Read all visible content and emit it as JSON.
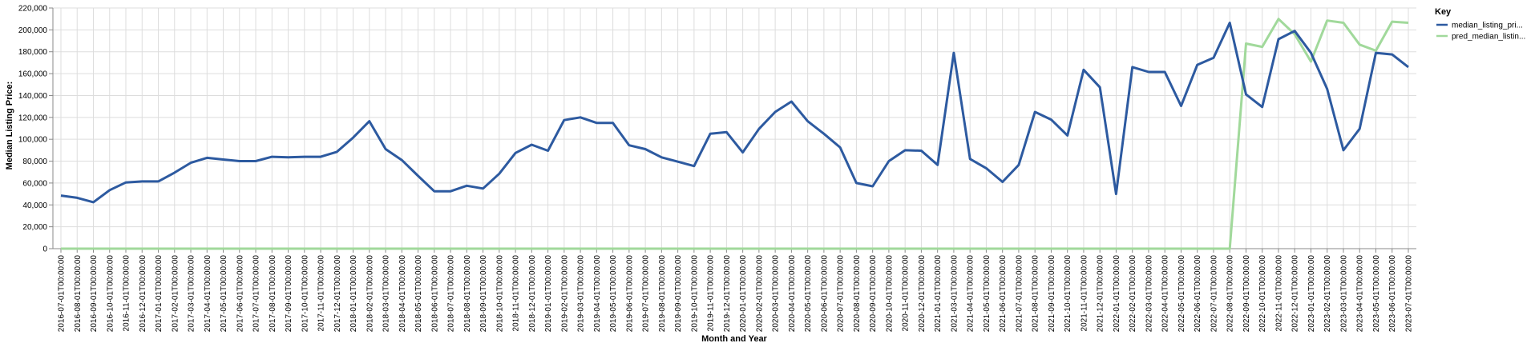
{
  "chart_data": {
    "type": "line",
    "title": "",
    "xlabel": "Month and Year",
    "ylabel": "Median Listing Price:",
    "ylim": [
      0,
      220000
    ],
    "yticks": [
      "0",
      "20,000",
      "40,000",
      "60,000",
      "80,000",
      "100,000",
      "120,000",
      "140,000",
      "160,000",
      "180,000",
      "200,000",
      "220,000"
    ],
    "grid": true,
    "legend": {
      "title": "Key",
      "position": "right"
    },
    "x": [
      "2016-07-01T00:00:00",
      "2016-08-01T00:00:00",
      "2016-09-01T00:00:00",
      "2016-10-01T00:00:00",
      "2016-11-01T00:00:00",
      "2016-12-01T00:00:00",
      "2017-01-01T00:00:00",
      "2017-02-01T00:00:00",
      "2017-03-01T00:00:00",
      "2017-04-01T00:00:00",
      "2017-05-01T00:00:00",
      "2017-06-01T00:00:00",
      "2017-07-01T00:00:00",
      "2017-08-01T00:00:00",
      "2017-09-01T00:00:00",
      "2017-10-01T00:00:00",
      "2017-11-01T00:00:00",
      "2017-12-01T00:00:00",
      "2018-01-01T00:00:00",
      "2018-02-01T00:00:00",
      "2018-03-01T00:00:00",
      "2018-04-01T00:00:00",
      "2018-05-01T00:00:00",
      "2018-06-01T00:00:00",
      "2018-07-01T00:00:00",
      "2018-08-01T00:00:00",
      "2018-09-01T00:00:00",
      "2018-10-01T00:00:00",
      "2018-11-01T00:00:00",
      "2018-12-01T00:00:00",
      "2019-01-01T00:00:00",
      "2019-02-01T00:00:00",
      "2019-03-01T00:00:00",
      "2019-04-01T00:00:00",
      "2019-05-01T00:00:00",
      "2019-06-01T00:00:00",
      "2019-07-01T00:00:00",
      "2019-08-01T00:00:00",
      "2019-09-01T00:00:00",
      "2019-10-01T00:00:00",
      "2019-11-01T00:00:00",
      "2019-12-01T00:00:00",
      "2020-01-01T00:00:00",
      "2020-02-01T00:00:00",
      "2020-03-01T00:00:00",
      "2020-04-01T00:00:00",
      "2020-05-01T00:00:00",
      "2020-06-01T00:00:00",
      "2020-07-01T00:00:00",
      "2020-08-01T00:00:00",
      "2020-09-01T00:00:00",
      "2020-10-01T00:00:00",
      "2020-11-01T00:00:00",
      "2020-12-01T00:00:00",
      "2021-01-01T00:00:00",
      "2021-03-01T00:00:00",
      "2021-04-01T00:00:00",
      "2021-05-01T00:00:00",
      "2021-06-01T00:00:00",
      "2021-07-01T00:00:00",
      "2021-08-01T00:00:00",
      "2021-09-01T00:00:00",
      "2021-10-01T00:00:00",
      "2021-11-01T00:00:00",
      "2021-12-01T00:00:00",
      "2022-01-01T00:00:00",
      "2022-02-01T00:00:00",
      "2022-03-01T00:00:00",
      "2022-04-01T00:00:00",
      "2022-05-01T00:00:00",
      "2022-06-01T00:00:00",
      "2022-07-01T00:00:00",
      "2022-08-01T00:00:00",
      "2022-09-01T00:00:00",
      "2022-10-01T00:00:00",
      "2022-11-01T00:00:00",
      "2022-12-01T00:00:00",
      "2023-01-01T00:00:00",
      "2023-02-01T00:00:00",
      "2023-03-01T00:00:00",
      "2023-04-01T00:00:00",
      "2023-05-01T00:00:00",
      "2023-06-01T00:00:00",
      "2023-07-01T00:00:00"
    ],
    "series": [
      {
        "name": "median_listing_pri...",
        "color": "#2d5aa0",
        "values": [
          48500,
          46500,
          42500,
          53500,
          60500,
          61500,
          61500,
          69500,
          78500,
          83000,
          81500,
          80000,
          80000,
          84000,
          83500,
          84000,
          84000,
          88500,
          101500,
          116500,
          91000,
          81000,
          66500,
          52500,
          52500,
          57500,
          55000,
          68500,
          87500,
          95000,
          89500,
          117500,
          120000,
          115000,
          115000,
          94500,
          91000,
          83500,
          79500,
          75500,
          105000,
          106500,
          88000,
          109500,
          125000,
          134500,
          116500,
          105000,
          92500,
          60000,
          57000,
          80000,
          90000,
          89500,
          76500,
          179000,
          82000,
          73500,
          61000,
          76500,
          125000,
          118000,
          103500,
          163500,
          147500,
          50000,
          166000,
          161500,
          161500,
          130500,
          168000,
          174500,
          206500,
          141000,
          129500,
          191500,
          199000,
          179000,
          146000,
          90000,
          109500,
          179000,
          177500,
          166000
        ]
      },
      {
        "name": "pred_median_listin...",
        "color": "#a1d99b",
        "values": [
          0,
          0,
          0,
          0,
          0,
          0,
          0,
          0,
          0,
          0,
          0,
          0,
          0,
          0,
          0,
          0,
          0,
          0,
          0,
          0,
          0,
          0,
          0,
          0,
          0,
          0,
          0,
          0,
          0,
          0,
          0,
          0,
          0,
          0,
          0,
          0,
          0,
          0,
          0,
          0,
          0,
          0,
          0,
          0,
          0,
          0,
          0,
          0,
          0,
          0,
          0,
          0,
          0,
          0,
          0,
          0,
          0,
          0,
          0,
          0,
          0,
          0,
          0,
          0,
          0,
          0,
          0,
          0,
          0,
          0,
          0,
          0,
          0,
          187500,
          184500,
          210000,
          196000,
          171000,
          208500,
          206500,
          186500,
          181000,
          207500,
          206500
        ]
      }
    ]
  }
}
